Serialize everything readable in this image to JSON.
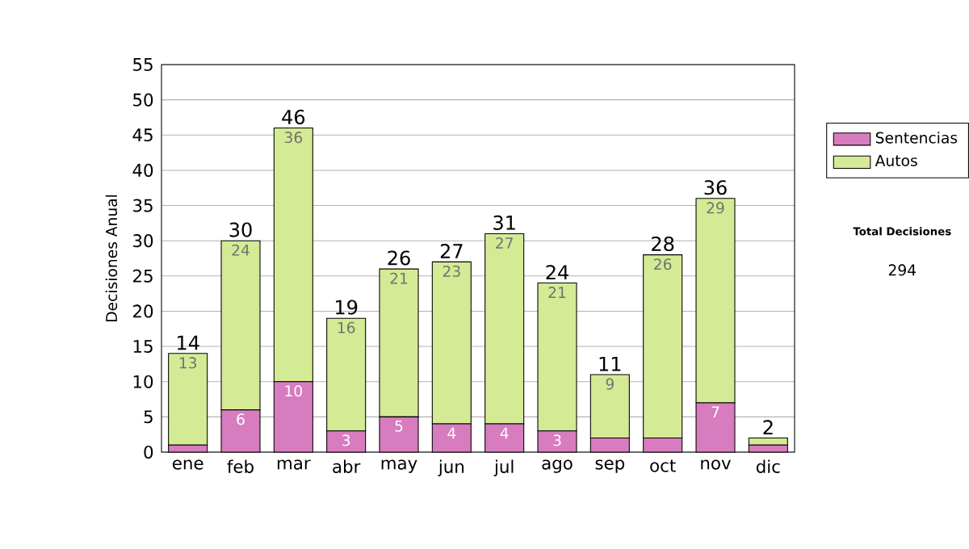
{
  "chart_data": {
    "type": "bar",
    "stacked": true,
    "ylabel": "Decisiones Anual",
    "categories": [
      "ene",
      "feb",
      "mar",
      "abr",
      "may",
      "jun",
      "jul",
      "ago",
      "sep",
      "oct",
      "nov",
      "dic"
    ],
    "series": [
      {
        "name": "Sentencias",
        "color": "#d87cc0",
        "values": [
          1,
          6,
          10,
          3,
          5,
          4,
          4,
          3,
          2,
          2,
          7,
          1
        ],
        "value_labels": [
          null,
          "6",
          "10",
          "3",
          "5",
          "4",
          "4",
          "3",
          null,
          null,
          "7",
          null
        ]
      },
      {
        "name": "Autos",
        "color": "#d4ea94",
        "values": [
          13,
          24,
          36,
          16,
          21,
          23,
          27,
          21,
          9,
          26,
          29,
          1
        ],
        "value_labels": [
          "13",
          "24",
          "36",
          "16",
          "21",
          "23",
          "27",
          "21",
          "9",
          "26",
          "29",
          null
        ]
      }
    ],
    "totals": [
      "14",
      "30",
      "46",
      "19",
      "26",
      "27",
      "31",
      "24",
      "11",
      "28",
      "36",
      "2"
    ],
    "ylim": [
      0,
      55
    ],
    "yticks": [
      0,
      5,
      10,
      15,
      20,
      25,
      30,
      35,
      40,
      45,
      50,
      55
    ],
    "grid": "y",
    "legend": "right",
    "annotations": [
      "Total Decisiones",
      "294"
    ]
  }
}
